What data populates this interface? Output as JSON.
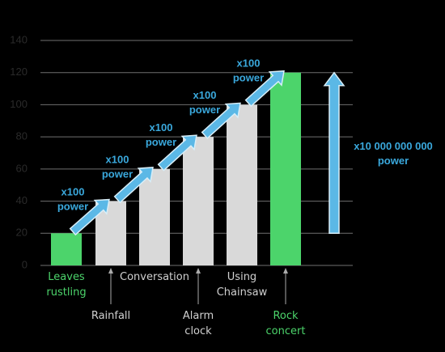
{
  "chart_data": {
    "type": "bar",
    "categories": [
      "Leaves rustling",
      "Rainfall",
      "Conversation",
      "Alarm clock",
      "Using Chainsaw",
      "Rock concert"
    ],
    "values": [
      20,
      40,
      60,
      80,
      100,
      120
    ],
    "colors": [
      "#4cd46b",
      "#d9d9d9",
      "#d9d9d9",
      "#d9d9d9",
      "#d9d9d9",
      "#4cd46b"
    ],
    "ylim": [
      0,
      140
    ],
    "yticks": [
      0,
      20,
      40,
      60,
      80,
      100,
      120,
      140
    ],
    "grid": true,
    "step_label": "x100 power",
    "total_label": "x10 000 000 000 power"
  }
}
